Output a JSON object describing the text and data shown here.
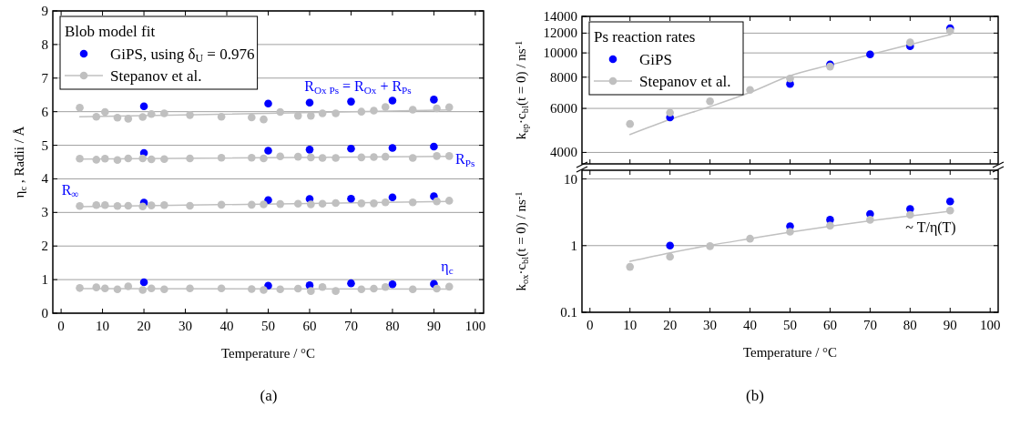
{
  "chart_data": [
    {
      "type": "scatter",
      "xlabel": "Temperature / °C",
      "ylabel": "η$_{c}$ , Radii / Å",
      "legend_title": "Blob model fit",
      "legend": "top left",
      "grid": "y",
      "xlim": [
        -2,
        102
      ],
      "ylim": [
        0,
        9
      ],
      "xticks": [
        0,
        10,
        20,
        30,
        40,
        50,
        60,
        70,
        80,
        90,
        100
      ],
      "yticks": [
        0,
        1,
        2,
        3,
        4,
        5,
        6,
        7,
        8,
        9
      ],
      "annotations": [
        "R$_{Ox Ps}$ = R$_{Ox}$ + R$_{Ps}$",
        "R$_{Ps}$",
        "R$_{∞}$",
        "η$_{c}$",
        "(a)"
      ],
      "series": [
        {
          "name": "GiPS, using δ$_{U}$ = 0.976",
          "type": "scatter",
          "marker": "circle",
          "color": "#0000ff",
          "x": [
            20,
            50,
            60,
            70,
            80,
            90,
            20,
            50,
            60,
            70,
            80,
            90,
            20,
            50,
            60,
            70,
            80,
            90,
            20,
            50,
            60,
            70,
            80,
            90
          ],
          "values": [
            6.16,
            6.24,
            6.27,
            6.3,
            6.33,
            6.36,
            4.77,
            4.84,
            4.87,
            4.9,
            4.92,
            4.96,
            3.29,
            3.37,
            3.4,
            3.41,
            3.45,
            3.48,
            0.92,
            0.82,
            0.83,
            0.89,
            0.86,
            0.87
          ]
        },
        {
          "name": "Stepanov et al.",
          "type": "scatter",
          "marker": "circle",
          "color": "#c0c0c0",
          "x": [
            4.5,
            8.5,
            10.6,
            13.6,
            16.2,
            19.7,
            21.8,
            24.9,
            31.1,
            38.7,
            46,
            48.9,
            52.9,
            57.2,
            60.3,
            63.1,
            66.3,
            72.5,
            75.5,
            78.3,
            84.9,
            90.7,
            93.7,
            4.5,
            8.5,
            10.6,
            13.6,
            16.2,
            19.7,
            21.8,
            24.9,
            31.1,
            38.7,
            46,
            48.9,
            52.9,
            57.2,
            60.3,
            63.1,
            66.3,
            72.5,
            75.5,
            78.3,
            84.9,
            90.7,
            93.7,
            4.5,
            8.5,
            10.6,
            13.6,
            16.2,
            19.7,
            21.8,
            24.9,
            31.1,
            38.7,
            46,
            48.9,
            52.9,
            57.2,
            60.3,
            63.1,
            66.3,
            72.5,
            75.5,
            78.3,
            84.9,
            90.7,
            93.7,
            4.5,
            8.5,
            10.6,
            13.6,
            16.2,
            19.7,
            21.8,
            24.9,
            31.1,
            38.7,
            46,
            48.9,
            52.9,
            57.2,
            60.3,
            63.1,
            66.3,
            72.5,
            75.5,
            78.3,
            84.9,
            90.7,
            93.7
          ],
          "values": [
            6.12,
            5.85,
            5.99,
            5.82,
            5.79,
            5.84,
            5.93,
            5.95,
            5.9,
            5.85,
            5.83,
            5.77,
            5.99,
            5.88,
            5.88,
            5.95,
            5.95,
            6.0,
            6.03,
            6.14,
            6.06,
            6.1,
            6.13,
            4.6,
            4.57,
            4.6,
            4.56,
            4.61,
            4.61,
            4.58,
            4.59,
            4.61,
            4.63,
            4.63,
            4.61,
            4.67,
            4.66,
            4.64,
            4.62,
            4.62,
            4.64,
            4.65,
            4.66,
            4.62,
            4.68,
            4.68,
            3.19,
            3.22,
            3.22,
            3.19,
            3.2,
            3.18,
            3.21,
            3.22,
            3.2,
            3.23,
            3.23,
            3.24,
            3.25,
            3.26,
            3.24,
            3.26,
            3.28,
            3.27,
            3.27,
            3.3,
            3.3,
            3.33,
            3.35,
            0.75,
            0.77,
            0.74,
            0.71,
            0.8,
            0.69,
            0.74,
            0.71,
            0.74,
            0.74,
            0.72,
            0.69,
            0.71,
            0.73,
            0.66,
            0.78,
            0.66,
            0.71,
            0.73,
            0.78,
            0.71,
            0.73,
            0.79
          ]
        },
        {
          "type": "line",
          "color": "#c0c0c0",
          "x": [
            4.5,
            93.7
          ],
          "values": [
            5.85,
            6.05
          ]
        },
        {
          "type": "line",
          "color": "#c0c0c0",
          "x": [
            4.5,
            93.7
          ],
          "values": [
            4.59,
            4.67
          ]
        },
        {
          "type": "line",
          "color": "#c0c0c0",
          "x": [
            4.5,
            93.7
          ],
          "values": [
            3.17,
            3.33
          ]
        },
        {
          "type": "line",
          "color": "#c0c0c0",
          "x": [
            4.5,
            93.7
          ],
          "values": [
            0.73,
            0.72
          ]
        }
      ]
    },
    {
      "type": "scatter",
      "ylabel": "k$_{ep}$·c$_{bl}$(t = 0) / ns$^{-1}$",
      "legend_title": "Ps reaction rates",
      "legend": "top left",
      "grid": "y",
      "log": true,
      "tick_labels": "y",
      "xlim": [
        -2,
        102
      ],
      "ylim": [
        3600,
        14000
      ],
      "xticks": [
        0,
        10,
        20,
        30,
        40,
        50,
        60,
        70,
        80,
        90,
        100
      ],
      "yticks": [
        4000,
        6000,
        8000,
        10000,
        12000,
        14000
      ],
      "series": [
        {
          "name": "GiPS",
          "type": "scatter",
          "marker": "circle",
          "color": "#0000ff",
          "x": [
            20,
            50,
            60,
            70,
            80,
            90
          ],
          "values": [
            5520,
            7520,
            8990,
            9870,
            10640,
            12550
          ]
        },
        {
          "name": "Stepanov et al.",
          "type": "scatter",
          "marker": "circle",
          "color": "#c0c0c0",
          "x": [
            10,
            20,
            30,
            40,
            50,
            60,
            80,
            90
          ],
          "values": [
            5200,
            5770,
            6410,
            7110,
            7900,
            8820,
            11010,
            12250
          ]
        },
        {
          "type": "line",
          "color": "#c0c0c0",
          "x": [
            10,
            20,
            30,
            40,
            50,
            60,
            70,
            80,
            90
          ],
          "values": [
            4720,
            5420,
            6100,
            6950,
            8100,
            8950,
            9850,
            10800,
            11830
          ]
        }
      ]
    },
    {
      "type": "scatter",
      "xlabel": "Temperature / °C",
      "ylabel": "k$_{ox}$·c$_{bl}$(t = 0) / ns$^{-1}$",
      "grid": "y",
      "log": true,
      "xlim": [
        -2,
        102
      ],
      "ylim": [
        0.1,
        13.5
      ],
      "xticks": [
        0,
        10,
        20,
        30,
        40,
        50,
        60,
        70,
        80,
        90,
        100
      ],
      "yticks": [
        0.1,
        1,
        10
      ],
      "annotations": [
        "~ T/η(T)",
        "(b)"
      ],
      "series": [
        {
          "type": "scatter",
          "marker": "circle",
          "color": "#0000ff",
          "x": [
            20,
            50,
            60,
            70,
            80,
            90
          ],
          "values": [
            1.0,
            1.95,
            2.44,
            2.99,
            3.54,
            4.59
          ]
        },
        {
          "type": "scatter",
          "marker": "circle",
          "color": "#c0c0c0",
          "x": [
            10,
            20,
            30,
            40,
            50,
            60,
            70,
            80,
            90
          ],
          "values": [
            0.48,
            0.68,
            0.98,
            1.27,
            1.62,
            1.99,
            2.44,
            2.89,
            3.35
          ]
        },
        {
          "type": "line",
          "color": "#c0c0c0",
          "x": [
            10,
            20,
            30,
            40,
            50,
            60,
            70,
            80,
            90
          ],
          "values": [
            0.58,
            0.78,
            1.01,
            1.27,
            1.59,
            1.95,
            2.36,
            2.79,
            3.27
          ]
        }
      ]
    }
  ]
}
